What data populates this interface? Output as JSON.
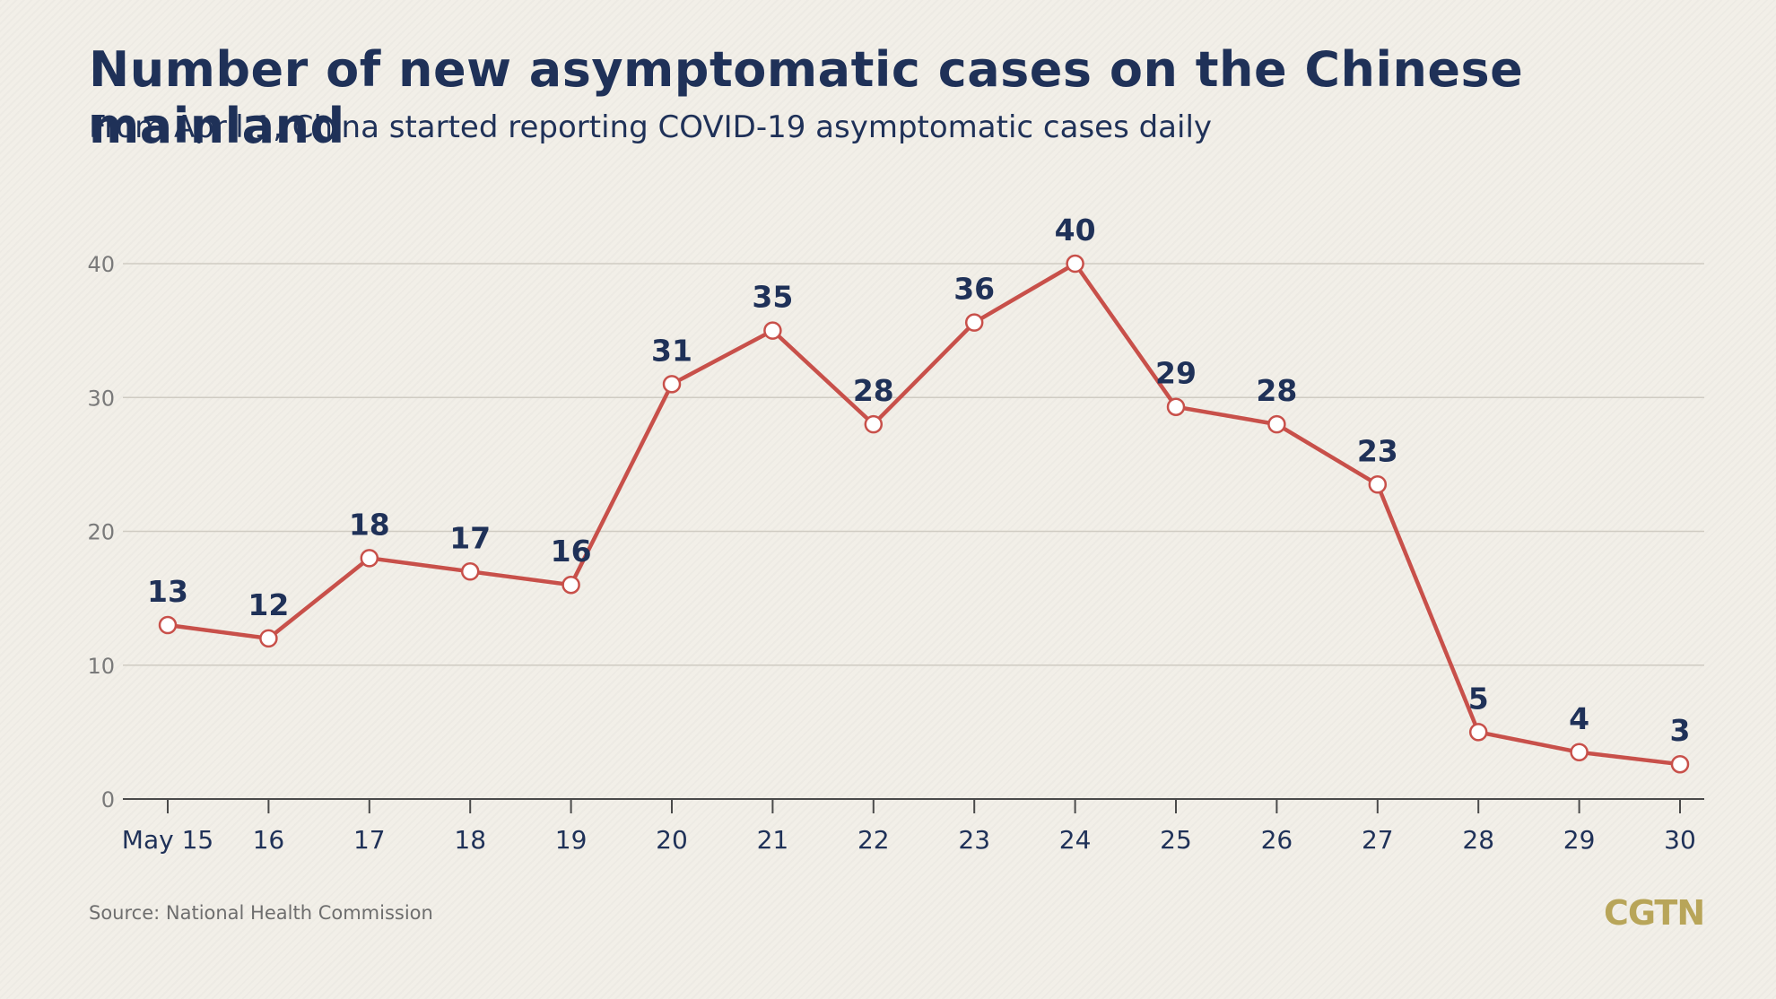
{
  "colors": {
    "background": "#f2efe8",
    "title": "#1f3158",
    "line": "#c8504a",
    "marker_fill": "#ffffff",
    "grid": "#cfcbc2",
    "axis": "#4a4a4a",
    "logo": "#b8a559"
  },
  "header": {
    "title": "Number of new asymptomatic cases on the Chinese mainland",
    "subtitle": "From April 1, China started reporting COVID-19 asymptomatic cases daily"
  },
  "footer": {
    "source": "Source: National Health Commission",
    "logo": "CGTN"
  },
  "chart_data": {
    "type": "line",
    "title": "Number of new asymptomatic cases on the Chinese mainland",
    "subtitle": "From April 1, China started reporting COVID-19 asymptomatic cases daily",
    "xlabel": "",
    "ylabel": "",
    "categories": [
      "May 15",
      "16",
      "17",
      "18",
      "19",
      "20",
      "21",
      "22",
      "23",
      "24",
      "25",
      "26",
      "27",
      "28",
      "29",
      "30"
    ],
    "values": [
      13,
      12,
      18,
      17,
      16,
      31,
      35,
      28,
      36,
      40,
      29,
      28,
      23,
      5,
      4,
      3
    ],
    "plotted_values": [
      13,
      12,
      18,
      17,
      16,
      31,
      35,
      28,
      35.6,
      40,
      29.3,
      28,
      23.5,
      5,
      3.5,
      2.6
    ],
    "data_labels": [
      "13",
      "12",
      "18",
      "17",
      "16",
      "31",
      "35",
      "28",
      "36",
      "40",
      "29",
      "28",
      "23",
      "5",
      "4",
      "3"
    ],
    "yticks": [
      0,
      10,
      20,
      30,
      40
    ],
    "ylim": [
      0,
      40
    ],
    "grid": true,
    "legend": "none"
  }
}
